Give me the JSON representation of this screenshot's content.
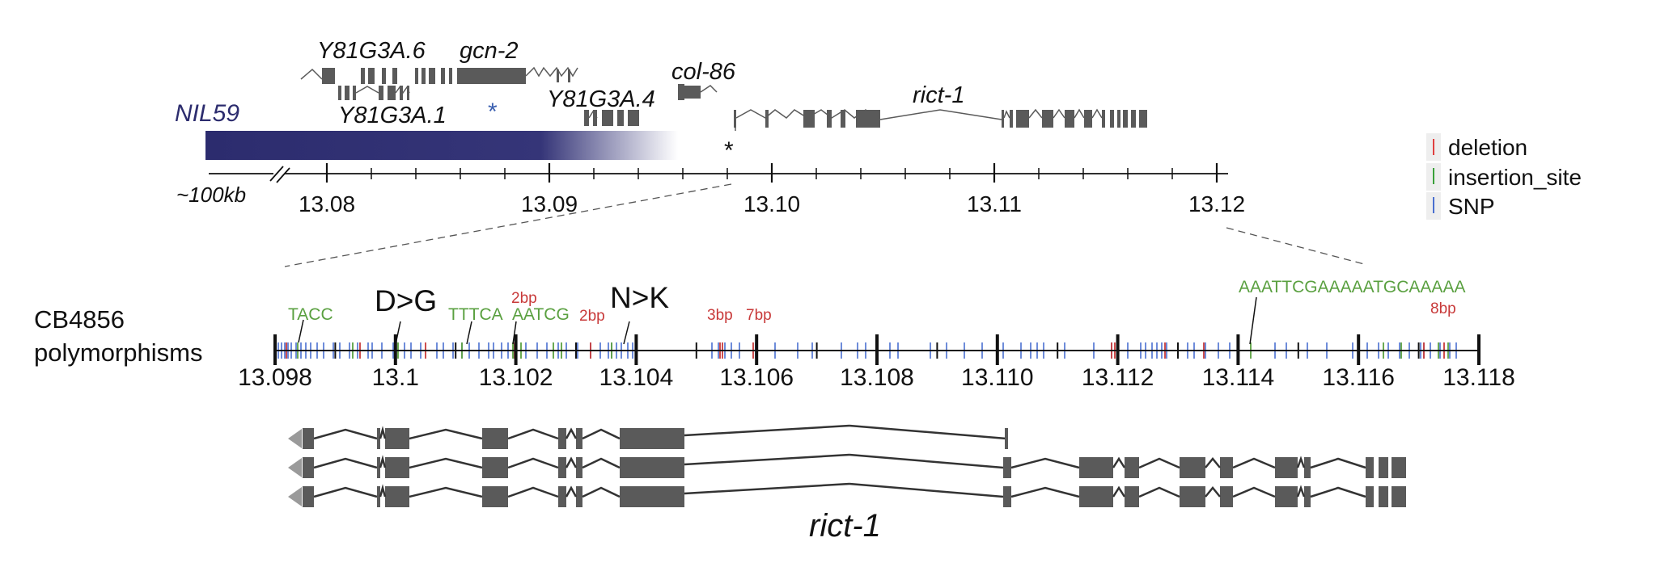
{
  "region": {
    "nil_label": "NIL59",
    "scale_note": "~100kb",
    "ticks": [
      "13.08",
      "13.09",
      "13.10",
      "13.11",
      "13.12"
    ]
  },
  "genes": {
    "y81g3a6": "Y81G3A.6",
    "gcn2": "gcn-2",
    "y81g3a1": "Y81G3A.1",
    "y81g3a4": "Y81G3A.4",
    "col86": "col-86",
    "rict1": "rict-1",
    "star_blue": "*",
    "star_black": "*"
  },
  "legend": {
    "items": [
      {
        "label": "deletion",
        "color": "#e04040"
      },
      {
        "label": "insertion_site",
        "color": "#3aa03a"
      },
      {
        "label": "SNP",
        "color": "#4a6fd0"
      }
    ]
  },
  "polymorphisms": {
    "title_line1": "CB4856",
    "title_line2": "polymorphisms",
    "ticks": [
      "13.098",
      "13.1",
      "13.102",
      "13.104",
      "13.106",
      "13.108",
      "13.110",
      "13.112",
      "13.114",
      "13.116",
      "13.118"
    ],
    "annotations": {
      "tacc": "TACC",
      "dg": "D>G",
      "tttca": "TTTCA",
      "aatcg": "AATCG",
      "bp2a": "2bp",
      "bp2b": "2bp",
      "nk": "N>K",
      "bp3": "3bp",
      "bp7": "7bp",
      "long_ins": "AAATTCGAAAAATGCAAAAA",
      "bp8": "8bp"
    }
  },
  "transcripts": {
    "label": "rict-1",
    "count": 3
  },
  "colors": {
    "nil_dark": "#2c2c6e",
    "gene": "#5a5a5a",
    "deletion": "#c83a3a",
    "insertion": "#5aa040",
    "snp": "#4a6fd0"
  }
}
